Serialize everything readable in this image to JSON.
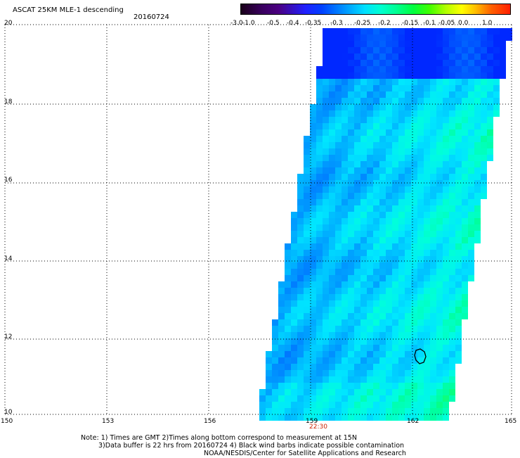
{
  "header": {
    "title": "ASCAT 25KM MLE-1 descending",
    "date": "20160724"
  },
  "colorbar": {
    "labels": [
      "-3.0",
      "-1.0",
      "-0.5",
      "-0.4",
      "-0.35",
      "-0.3",
      "-0.25",
      "-0.2",
      "-0.15",
      "-0.1",
      "-0.05",
      "0.0",
      "1.0"
    ],
    "colors": [
      "#1a001a",
      "#4b0082",
      "#6a00c8",
      "#0000ff",
      "#0050ff",
      "#00a0ff",
      "#00f0f0",
      "#00ffa0",
      "#00ff50",
      "#50ff00",
      "#ffff00",
      "#ff8000",
      "#ff2000"
    ]
  },
  "axes": {
    "x_ticks": [
      "150",
      "153",
      "156",
      "159",
      "162",
      "165"
    ],
    "y_ticks": [
      "20",
      "18",
      "16",
      "14",
      "12",
      "10"
    ],
    "time_label": "22:30"
  },
  "notes": {
    "line1": "Note: 1) Times are GMT 2)Times along bottom correspond to measurement at 15N",
    "line2": "3)Data buffer is 22 hrs from 20160724 4) Black wind barbs indicate possible contamination",
    "line3": "NOAA/NESDIS/Center for Satellite Applications and Research"
  },
  "colors": {
    "grid": "#000000",
    "time_label": "#cc2200"
  }
}
